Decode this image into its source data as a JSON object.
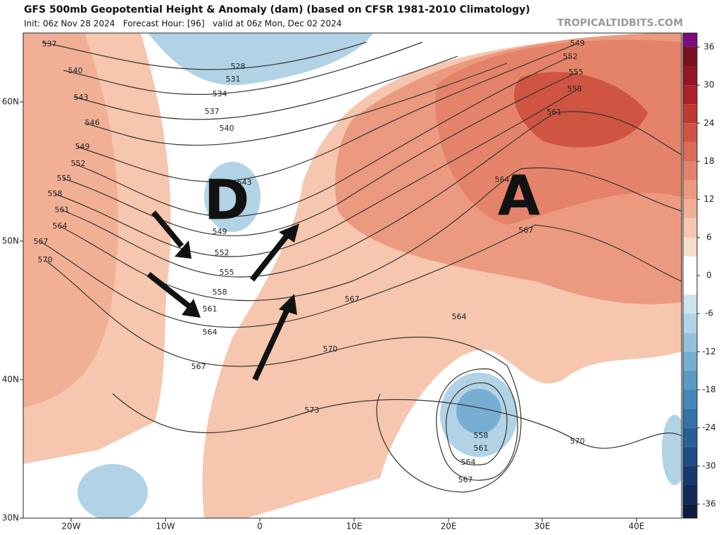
{
  "header": {
    "title": "GFS 500mb Geopotential Height & Anomaly (dam) (based on CFSR 1981-2010 Climatology)",
    "subtitle": "Init: 06z Nov 28 2024   Forecast Hour: [96]   valid at 06z Mon, Dec 02 2024",
    "watermark": "TROPICALTIDBITS.COM"
  },
  "axes": {
    "lat_labels": [
      "60N",
      "50N",
      "40N",
      "30N"
    ],
    "lon_labels": [
      "20W",
      "10W",
      "0",
      "10E",
      "20E",
      "30E",
      "40E"
    ]
  },
  "colorbar": {
    "ticks": [
      36,
      30,
      24,
      18,
      12,
      6,
      0,
      -6,
      -12,
      -18,
      -24,
      -30,
      -36
    ]
  },
  "contour_labels": [
    537,
    540,
    543,
    546,
    549,
    552,
    555,
    558,
    561,
    564,
    567,
    570,
    528,
    531,
    534,
    537,
    540,
    543,
    549,
    552,
    555,
    558,
    561,
    564,
    567,
    549,
    552,
    555,
    558,
    561,
    564,
    567,
    567,
    564,
    570,
    573,
    558,
    561,
    564,
    567,
    570
  ],
  "annotations": [
    "D",
    "A"
  ]
}
